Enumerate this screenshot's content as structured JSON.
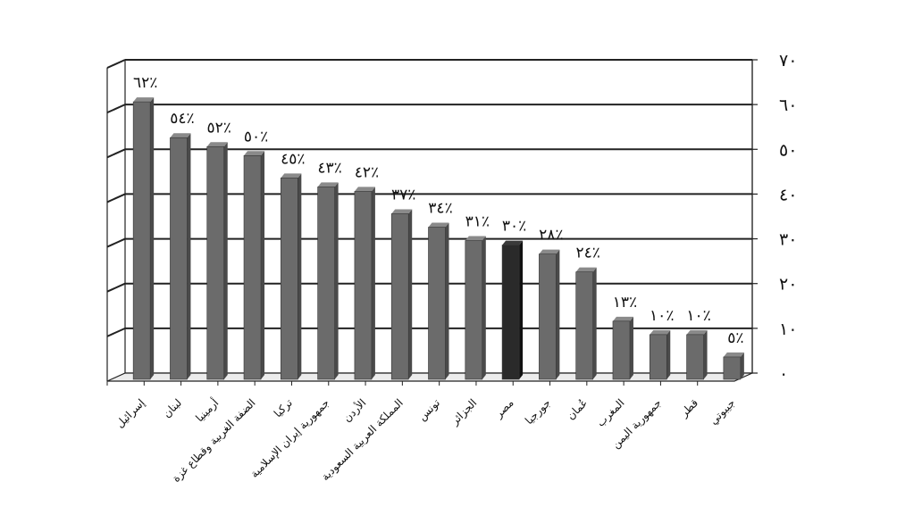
{
  "chart_data": {
    "type": "bar",
    "title": "",
    "xlabel": "",
    "ylabel": "",
    "ylim": [
      0,
      70
    ],
    "grid": true,
    "y_axis_side": "right",
    "y_ticks": [
      "٠",
      "١٠",
      "٢٠",
      "٣٠",
      "٤٠",
      "٥٠",
      "٦٠",
      "٧٠"
    ],
    "categories": [
      "إسرائيل",
      "لبنان",
      "أرمينيا",
      "الضفة الغربية وقطاع غزة",
      "تركيا",
      "جمهورية إيران الإسلامية",
      "الأردن",
      "المملكة العربية السعودية",
      "تونس",
      "الجزائر",
      "مصر",
      "جورجيا",
      "عُمان",
      "المغرب",
      "جمهورية اليمن",
      "قطر",
      "جيبوتي"
    ],
    "values": [
      62,
      54,
      52,
      50,
      45,
      43,
      42,
      37,
      34,
      31,
      30,
      28,
      24,
      13,
      10,
      10,
      5
    ],
    "data_labels": [
      "٪٦٢",
      "٪٥٤",
      "٪٥٢",
      "٪٥٠",
      "٪٤٥",
      "٪٤٣",
      "٪٤٢",
      "٪٣٧",
      "٪٣٤",
      "٪٣١",
      "٪٣٠",
      "٪٢٨",
      "٪٢٤",
      "٪١٣",
      "٪١٠",
      "٪١٠",
      "٪٥"
    ],
    "highlight_category": "مصر",
    "colors": {
      "bar": "#6b6b6b",
      "bar_highlight": "#2a2a2a",
      "grid": "#222222",
      "floor": "#ececec"
    }
  }
}
